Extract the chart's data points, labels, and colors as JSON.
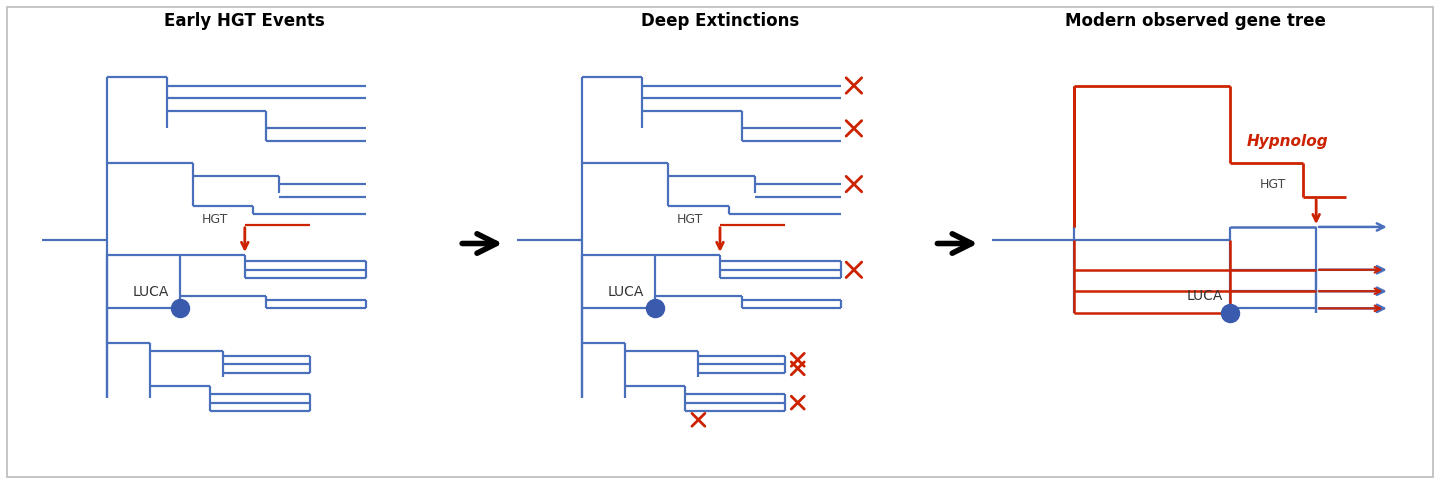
{
  "panel1_title": "Early HGT Events",
  "panel2_title": "Deep Extinctions",
  "panel3_title": "Modern observed gene tree",
  "blue": "#4a6fbb",
  "red": "#cc2200",
  "luca_color": "#3a5aad",
  "background": "#ffffff"
}
